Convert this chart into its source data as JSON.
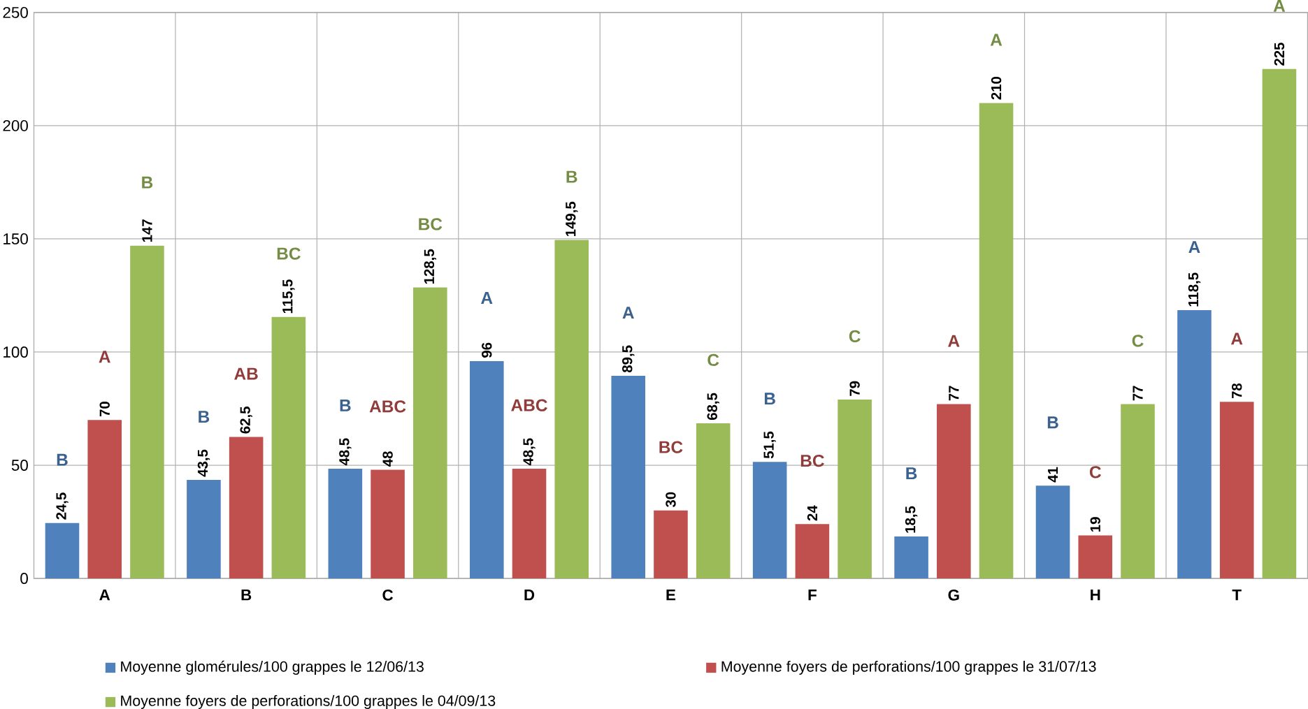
{
  "chart_data": {
    "type": "bar",
    "categories": [
      "A",
      "B",
      "C",
      "D",
      "E",
      "F",
      "G",
      "H",
      "T"
    ],
    "series": [
      {
        "name": "Moyenne glomérules/100 grappes le 12/06/13",
        "color": "#4f81bd",
        "values": [
          24.5,
          43.5,
          48.5,
          96,
          89.5,
          51.5,
          18.5,
          41,
          118.5
        ],
        "value_labels": [
          "24,5",
          "43,5",
          "48,5",
          "96",
          "89,5",
          "51,5",
          "18,5",
          "41",
          "118,5"
        ]
      },
      {
        "name": "Moyenne foyers de perforations/100 grappes le 31/07/13",
        "color": "#c0504d",
        "values": [
          70,
          62.5,
          48,
          48.5,
          30,
          24,
          77,
          19,
          78
        ],
        "value_labels": [
          "70",
          "62,5",
          "48",
          "48,5",
          "30",
          "24",
          "77",
          "19",
          "78"
        ]
      },
      {
        "name": "Moyenne foyers de perforations/100 grappes le 04/09/13",
        "color": "#9bbb59",
        "values": [
          147,
          115.5,
          128.5,
          149.5,
          68.5,
          79,
          210,
          77,
          225
        ],
        "value_labels": [
          "147",
          "115,5",
          "128,5",
          "149,5",
          "68,5",
          "79",
          "210",
          "77",
          "225"
        ]
      }
    ],
    "ylim": [
      0,
      250
    ],
    "yticks": [
      0,
      50,
      100,
      150,
      200,
      250
    ],
    "grid": true,
    "legend": "bottom",
    "annotations": [
      "B",
      "A",
      "B",
      "B",
      "AB",
      "BC",
      "B",
      "ABC",
      "BC",
      "A",
      "ABC",
      "B",
      "A",
      "BC",
      "C",
      "B",
      "BC",
      "C",
      "B",
      "A",
      "A",
      "B",
      "C",
      "C",
      "A",
      "A",
      "A"
    ]
  }
}
